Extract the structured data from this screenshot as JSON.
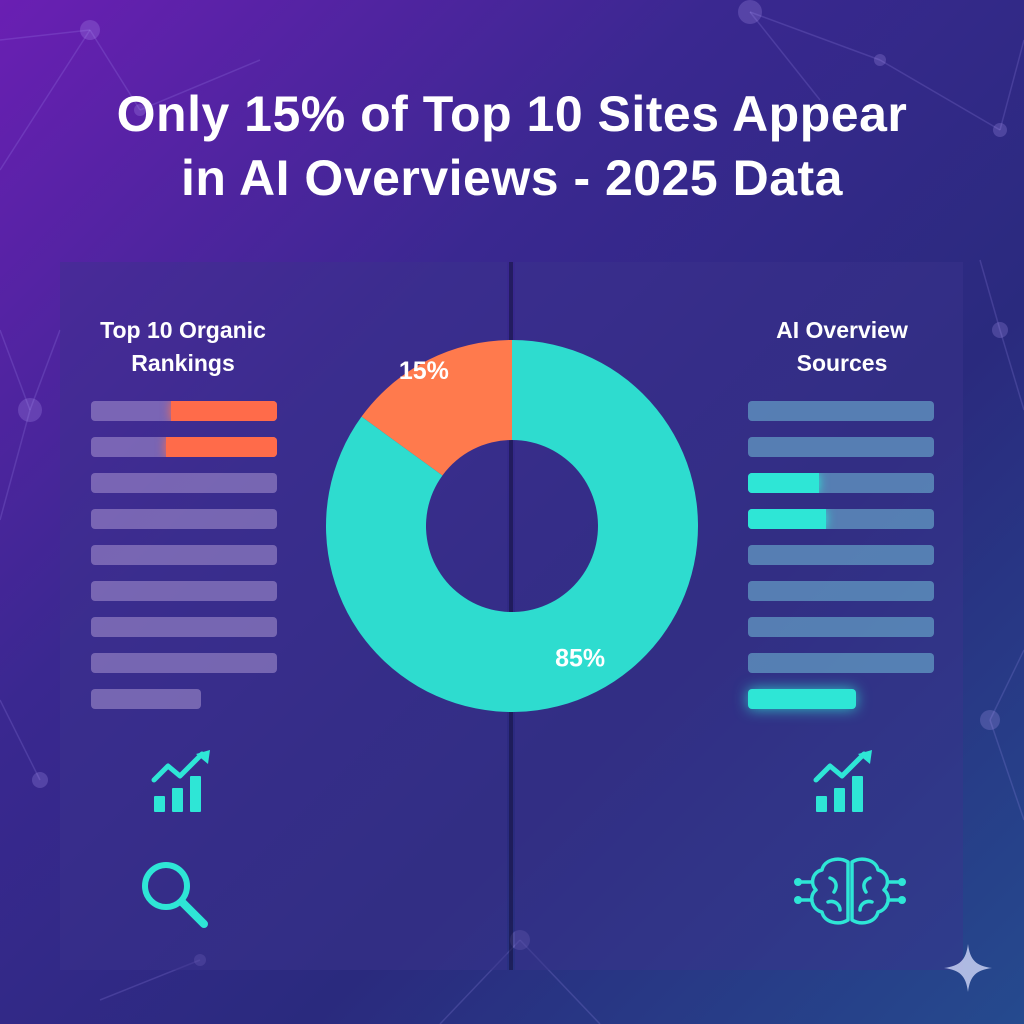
{
  "title": {
    "line1": "Only 15% of Top 10 Sites Appear",
    "line2": "in AI Overviews - 2025 Data"
  },
  "left_panel": {
    "heading_line1": "Top 10 Organic",
    "heading_line2": "Rankings",
    "icons": [
      "growth-chart-icon",
      "search-icon"
    ]
  },
  "right_panel": {
    "heading_line1": "AI Overview",
    "heading_line2": "Sources",
    "icons": [
      "growth-chart-icon",
      "brain-circuit-icon"
    ]
  },
  "chart_data": {
    "type": "pie",
    "style": "donut",
    "slices": [
      {
        "label": "15%",
        "value": 15,
        "color": "#ff7a4d"
      },
      {
        "label": "85%",
        "value": 85,
        "color": "#2edccf"
      }
    ]
  },
  "colors": {
    "highlight_orange": "#ff6b4a",
    "highlight_teal": "#2ee6d6",
    "background_start": "#6a1fb3",
    "background_end": "#254a8e"
  }
}
